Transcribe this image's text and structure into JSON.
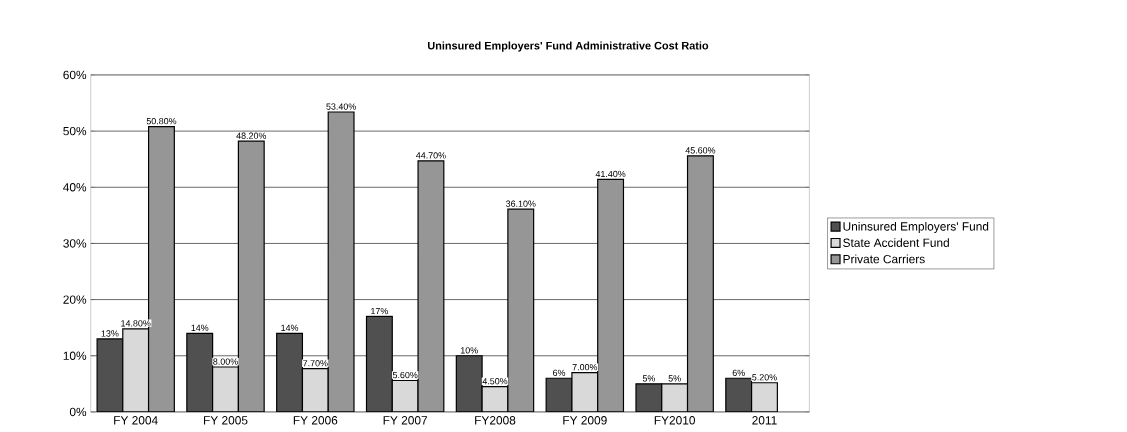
{
  "chart_data": {
    "type": "bar",
    "title": "Uninsured Employers' Fund Administrative Cost Ratio",
    "categories": [
      "FY 2004",
      "FY 2005",
      "FY 2006",
      "FY 2007",
      "FY2008",
      "FY 2009",
      "FY2010",
      "2011"
    ],
    "series": [
      {
        "name": "Uninsured Employers' Fund",
        "color": "#505050",
        "values": [
          13,
          14,
          14,
          17,
          10,
          6,
          5,
          6
        ],
        "value_labels": [
          "13%",
          "14%",
          "14%",
          "17%",
          "10%",
          "6%",
          "5%",
          "6%"
        ]
      },
      {
        "name": "State Accident Fund",
        "color": "#d9d9d9",
        "values": [
          14.8,
          8,
          7.7,
          5.6,
          4.5,
          7,
          5,
          5.2
        ],
        "value_labels": [
          "14.80%",
          "8.00%",
          "7.70%",
          "5.60%",
          "4.50%",
          "7.00%",
          "5%",
          "5.20%"
        ]
      },
      {
        "name": "Private Carriers",
        "color": "#969696",
        "values": [
          50.8,
          48.2,
          53.4,
          44.7,
          36.1,
          41.4,
          45.6,
          null
        ],
        "value_labels": [
          "50.80%",
          "48.20%",
          "53.40%",
          "44.70%",
          "36.10%",
          "41.40%",
          "45.60%",
          null
        ]
      }
    ],
    "ylim": [
      0,
      60
    ],
    "yticks": [
      {
        "value": 0,
        "label": "0%"
      },
      {
        "value": 10,
        "label": "10%"
      },
      {
        "value": 20,
        "label": "20%"
      },
      {
        "value": 30,
        "label": "30%"
      },
      {
        "value": 40,
        "label": "40%"
      },
      {
        "value": 50,
        "label": "50%"
      },
      {
        "value": 60,
        "label": "60%"
      }
    ],
    "grid": "y",
    "legend": "right"
  }
}
